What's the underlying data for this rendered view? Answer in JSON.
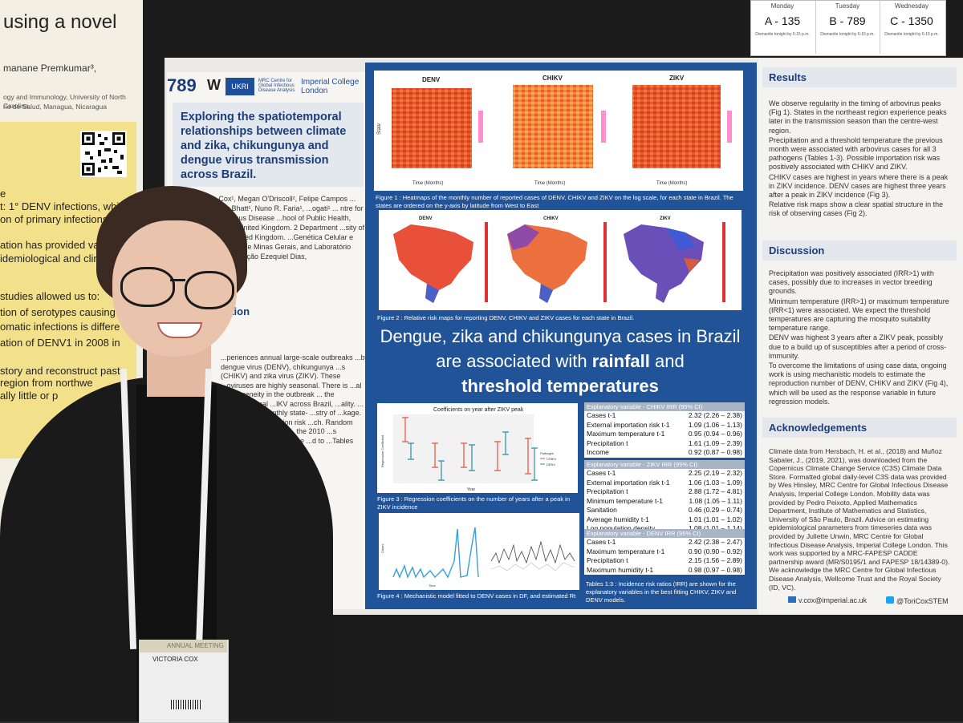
{
  "left_poster": {
    "title_fragment": "using a novel",
    "author_fragment": "manane Premkumar³,",
    "affiliation_lines": [
      "ogy and Immunology, University of North Carolina,",
      "rio de Salud, Managua, Nicaragua"
    ],
    "text_fragments": [
      "e",
      "t: 1° DENV infections, which",
      "on of primary infections",
      "ation has provided valuab",
      "idemiological and clinic",
      "studies allowed us to:",
      "tion of serotypes causing",
      "omatic infections is differe",
      "ation of DENV1 in 2008 in",
      "story and reconstruct past",
      "region from northwe",
      "ally little or p"
    ]
  },
  "schedule": {
    "days": [
      {
        "day": "Monday",
        "code": "A - 135",
        "note": "Dismantle tonight by 6:15 p.m."
      },
      {
        "day": "Tuesday",
        "code": "B - 789",
        "note": "Dismantle tonight by 6:15 p.m."
      },
      {
        "day": "Wednesday",
        "code": "C - 1350",
        "note": "Dismantle tonight by 6:15 p.m."
      }
    ]
  },
  "poster": {
    "number": "789",
    "logos": {
      "w": "W",
      "uk": "UKRI",
      "mrc": "MRC Centre for Global Infectious Disease Analysis",
      "imperial": "Imperial College London"
    },
    "title": "Exploring the spatiotemporal relationships between climate and zika, chikungunya and dengue virus transmission across Brazil.",
    "authors": "Victoria Cox¹, Megan O'Driscoll², Felipe Campos ... Iani³, Samir Bhatt¹, Nuno R. Faria¹, ...ogati¹ ... ntre for Global Infectious Disease ...hool of Public Health, Imperial ...on, United Kingdom. 2 Department ...sity of Cambridge, United Kingdom. ...Genética Celular e Molecular, ...ral de Minas Gerais, and Laboratório ...Pública, Fundação Ezequiel Dias,",
    "intro_heading": "ction",
    "intro_text": "...periences annual large-scale outbreaks ...by dengue virus (DENV), chikungunya ...s (CHIKV) and zika virus (ZIKV). These ...oviruses are highly seasonal. There is ...al heterogeneity in the outbreak ... the spatiotemporal ...IKV across Brazil, ...ality. ... regression ...monthly state- ...stry of ...kage. ...graphic and ...rtation risk ...ch. Random ...umber of ...cluded. ... the 2010 ...s calculated ... riables in the ...d to ...Tables 1:3).",
    "fig1": {
      "panels": [
        "DENV",
        "CHIKV",
        "ZIKV"
      ],
      "ylabel": "State",
      "xlabel": "Time (Months)",
      "caption": "Figure 1 : Heatmaps of the monthly number of reported cases of DENV, CHIKV and ZIKV on the log scale, for each state in Brazil. The states are ordered on the y-axis by latitude from West to East"
    },
    "fig2": {
      "panels": [
        "DENV",
        "CHIKV",
        "ZIKV"
      ],
      "caption": "Figure 2 : Relative risk maps for reporting DENV, CHIKV and ZIKV cases for each state in Brazil."
    },
    "headline": {
      "part1": "Dengue, zika and chikungunya cases in Brazil are associated with ",
      "bold1": "rainfall",
      "part2": " and ",
      "bold2": "threshold temperatures"
    },
    "fig3": {
      "title": "Coefficients on year after ZIKV peak",
      "ylabel": "Regression Coefficient",
      "xlabel": "Year",
      "legend_title": "Pathogen",
      "legend": [
        "CHIKV",
        "DENV"
      ],
      "caption": "Figure 3 : Regression coefficients on the number of years after a peak in ZIKV incidence"
    },
    "fig4": {
      "ylabel": "Cases",
      "xlabel": "Time",
      "caption": "Figure 4 : Mechanistic model fitted to DENV cases in DF, and estimated Rt"
    },
    "tables": [
      {
        "header": "Explanatory variable - CHIKV    IRR (95% CI)",
        "rows": [
          {
            "var": "Cases t-1",
            "irr": "2.32 (2.26 – 2.38)"
          },
          {
            "var": "External importation risk t-1",
            "irr": "1.09 (1.06 – 1.13)"
          },
          {
            "var": "Maximum temperature t-1",
            "irr": "0.95 (0.94 – 0.96)"
          },
          {
            "var": "Precipitation t",
            "irr": "1.61 (1.09 – 2.39)"
          },
          {
            "var": "Income",
            "irr": "0.92 (0.87 – 0.98)"
          }
        ]
      },
      {
        "header": "Explanatory variable - ZIKV    IRR (95% CI)",
        "rows": [
          {
            "var": "Cases t-1",
            "irr": "2.25 (2.19 – 2.32)"
          },
          {
            "var": "External importation risk t-1",
            "irr": "1.06 (1.03 – 1.09)"
          },
          {
            "var": "Precipitation t",
            "irr": "2.88 (1.72 – 4.81)"
          },
          {
            "var": "Minimum temperature t-1",
            "irr": "1.08 (1.05 – 1.11)"
          },
          {
            "var": "Sanitation",
            "irr": "0.46 (0.29 – 0.74)"
          },
          {
            "var": "Average humidity t-1",
            "irr": "1.01 (1.01 – 1.02)"
          },
          {
            "var": "Log population density",
            "irr": "1.08 (1.01 – 1.14)"
          }
        ]
      },
      {
        "header": "Explanatory variable - DENV    IRR (95% CI)",
        "rows": [
          {
            "var": "Cases t-1",
            "irr": "2.42 (2.38 – 2.47)"
          },
          {
            "var": "Maximum temperature t-1",
            "irr": "0.90 (0.90 – 0.92)"
          },
          {
            "var": "Precipitation t",
            "irr": "2.15 (1.56 – 2.89)"
          },
          {
            "var": "Maximum humidity t-1",
            "irr": "0.98 (0.97 – 0.98)"
          }
        ]
      }
    ],
    "tables_caption": "Tables 1:3 : Incidence risk ratios (IRR) are shown for the explanatory variables in the best fitting CHIKV, ZIKV and DENV models.",
    "results": {
      "heading": "Results",
      "bullets": [
        "We observe regularity in the timing of arbovirus peaks (Fig 1). States in the northeast region experience peaks later in the transmission season than the centre-west region.",
        "Precipitation and a threshold temperature the previous month were associated with arbovirus cases for all 3 pathogens (Tables 1-3). Possible importation risk was positively associated with CHIKV and ZIKV.",
        "CHIKV cases are highest in years where there is a peak in ZIKV incidence. DENV cases are highest three years after a peak in ZIKV incidence (Fig 3).",
        "Relative risk maps show a clear spatial structure in the risk of observing cases (Fig 2)."
      ]
    },
    "discussion": {
      "heading": "Discussion",
      "bullets": [
        "Precipitation was positively associated (IRR>1) with cases, possibly due to increases in vector breeding grounds.",
        "Minimum temperature (IRR>1) or maximum temperature (IRR<1) were associated. We expect the threshold temperatures are capturing the mosquito suitability temperature range.",
        "DENV was highest 3 years after a ZIKV peak, possibly due to a build up of susceptibles after a period of cross-immunity.",
        "To overcome the limitations of using case data, ongoing work is using mechanistic models to estimate the reproduction number of DENV, CHIKV and ZIKV (Fig 4), which will be used as the response variable in future regression models."
      ]
    },
    "acknowledgements": {
      "heading": "Acknowledgements",
      "text": "Climate data from Hersbach, H. et al., (2018) and Muñoz Sabater, J., (2019, 2021), was downloaded from the Copernicus Climate Change Service (C3S) Climate Data Store. Formatted global daily-level C3S data was provided by Wes Hinsley, MRC Centre for Global Infectious Disease Analysis, Imperial College London. Mobility data was provided by Pedro Peixoto, Applied Mathematics Department, Institute of Mathematics and Statistics, University of São Paulo, Brazil. Advice on estimating epidemiological parameters from timeseries data was provided by Juliette Unwin, MRC Centre for Global Infectious Disease Analysis, Imperial College London. This work was supported by a MRC-FAPESP CADDE partnership award (MR/S0195/1 and FAPESP 18/14389-0). We acknowledge the MRC Centre for Global Infectious Disease Analysis, Wellcome Trust and the Royal Society (ID, VC)."
    },
    "contact": {
      "email": "v.cox@imperial.ac.uk",
      "twitter": "@ToriCoxSTEM"
    }
  },
  "badge": {
    "meeting": "ANNUAL MEETING",
    "name": "VICTORIA COX"
  },
  "colors": {
    "poster_blue": "#215399",
    "navy": "#1b3d7a"
  }
}
